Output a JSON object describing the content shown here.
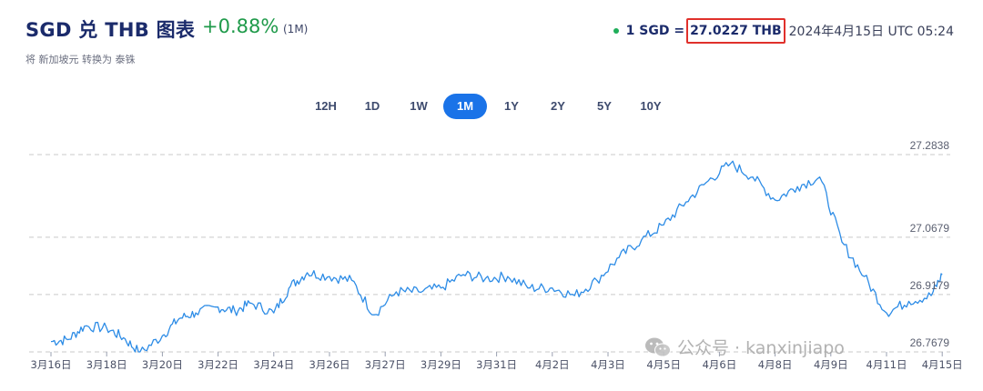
{
  "header": {
    "title": "SGD 兑 THB 图表",
    "change": "+0.88%",
    "period": "(1M)",
    "subtitle": "将 新加坡元 转换为 泰铢"
  },
  "rate": {
    "lhs": "1 SGD =",
    "value": "27.0227 THB",
    "time": "2024年4月15日 UTC 05:24"
  },
  "tabs": [
    {
      "label": "12H",
      "active": false
    },
    {
      "label": "1D",
      "active": false
    },
    {
      "label": "1W",
      "active": false
    },
    {
      "label": "1M",
      "active": true
    },
    {
      "label": "1Y",
      "active": false
    },
    {
      "label": "2Y",
      "active": false
    },
    {
      "label": "5Y",
      "active": false
    },
    {
      "label": "10Y",
      "active": false
    }
  ],
  "colors": {
    "line": "#2d8ce6",
    "grid": "#c9c9c9",
    "positive": "#1f9a4a",
    "highlight_box": "#e0302b",
    "active_tab": "#1a73e8"
  },
  "watermark": {
    "text": "公众号 · kanxinjiapo",
    "icon": "wechat-icon"
  },
  "chart_data": {
    "type": "line",
    "title": "",
    "xlabel": "",
    "ylabel": "",
    "ylim": [
      26.7679,
      27.2838
    ],
    "grid": true,
    "yticks": [
      "27.2838",
      "27.0679",
      "26.9179",
      "26.7679"
    ],
    "xticks": [
      "3月16日",
      "3月18日",
      "3月20日",
      "3月22日",
      "3月24日",
      "3月26日",
      "3月27日",
      "3月29日",
      "3月31日",
      "4月2日",
      "4月3日",
      "4月5日",
      "4月6日",
      "4月8日",
      "4月9日",
      "4月11日",
      "4月15日"
    ],
    "series": [
      {
        "x": [
          0,
          0.3,
          0.6,
          1.0,
          1.3,
          1.6,
          2.0,
          2.3,
          2.6,
          3.0,
          3.3,
          3.6,
          4.0,
          4.3,
          4.6,
          5.0,
          5.4,
          5.8,
          6.2,
          6.6,
          7.0,
          7.4,
          7.8,
          8.2,
          8.6,
          9.0,
          9.4,
          9.8,
          10.2,
          10.6,
          11.0,
          11.4,
          11.8,
          12.2,
          12.6,
          13.0,
          13.4,
          13.8,
          14.2,
          14.6,
          15.0,
          15.4,
          15.8,
          16.0
        ],
        "values": [
          26.795,
          26.8,
          26.835,
          26.83,
          26.805,
          26.765,
          26.81,
          26.855,
          26.87,
          26.885,
          26.875,
          26.895,
          26.87,
          26.94,
          26.975,
          26.965,
          26.955,
          26.865,
          26.925,
          26.925,
          26.935,
          26.97,
          26.96,
          26.965,
          26.935,
          26.935,
          26.915,
          26.955,
          27.015,
          27.06,
          27.1,
          27.16,
          27.215,
          27.26,
          27.225,
          27.165,
          27.2,
          27.225,
          27.055,
          26.965,
          26.87,
          26.9,
          26.915,
          26.97
        ]
      }
    ]
  }
}
